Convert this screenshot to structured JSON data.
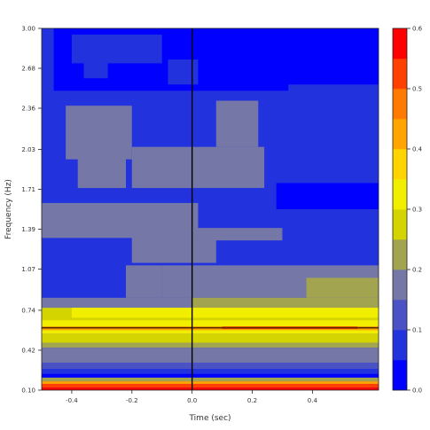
{
  "chart_data": {
    "type": "heatmap",
    "title": "",
    "xlabel": "Time (sec)",
    "ylabel": "Frequency (Hz)",
    "xlim": [
      -0.5,
      0.62
    ],
    "ylim": [
      0.1,
      3.0
    ],
    "x_ticks": [
      -0.4,
      -0.2,
      0.0,
      0.2,
      0.4
    ],
    "x_tick_labels": [
      "-0.4",
      "-0.2",
      "0.0",
      "0.2",
      "0.4"
    ],
    "y_ticks": [
      0.1,
      0.42,
      0.74,
      1.07,
      1.39,
      1.71,
      2.03,
      2.36,
      2.68,
      3.0
    ],
    "y_tick_labels": [
      "0.10",
      "0.42",
      "0.74",
      "1.07",
      "1.39",
      "1.71",
      "2.03",
      "2.36",
      "2.68",
      "3.00"
    ],
    "vertical_line_x": 0.0,
    "horizontal_line_y": 0.6,
    "colorbar": {
      "min": 0.0,
      "max": 0.6,
      "ticks": [
        0.0,
        0.1,
        0.2,
        0.3,
        0.4,
        0.5,
        0.6
      ],
      "tick_labels": [
        "0.0",
        "0.1",
        "0.2",
        "0.3",
        "0.4",
        "0.5",
        "0.6"
      ],
      "levels": [
        {
          "from": 0.0,
          "to": 0.05,
          "color": "#0000ff"
        },
        {
          "from": 0.05,
          "to": 0.1,
          "color": "#2233dd"
        },
        {
          "from": 0.1,
          "to": 0.15,
          "color": "#4a52c4"
        },
        {
          "from": 0.15,
          "to": 0.2,
          "color": "#7577a6"
        },
        {
          "from": 0.2,
          "to": 0.25,
          "color": "#a3a44f"
        },
        {
          "from": 0.25,
          "to": 0.3,
          "color": "#d4d400"
        },
        {
          "from": 0.3,
          "to": 0.35,
          "color": "#f2ee00"
        },
        {
          "from": 0.35,
          "to": 0.4,
          "color": "#ffd400"
        },
        {
          "from": 0.4,
          "to": 0.45,
          "color": "#ffa500"
        },
        {
          "from": 0.45,
          "to": 0.5,
          "color": "#ff7a00"
        },
        {
          "from": 0.5,
          "to": 0.55,
          "color": "#ff4000"
        },
        {
          "from": 0.55,
          "to": 0.6,
          "color": "#ff0000"
        }
      ]
    },
    "regions": [
      {
        "x0": -0.5,
        "x1": 0.62,
        "y0": 0.1,
        "y1": 3.0,
        "level": 2
      },
      {
        "x0": -0.5,
        "x1": 0.62,
        "y0": 2.3,
        "y1": 3.0,
        "level": 1
      },
      {
        "x0": -0.46,
        "x1": 0.32,
        "y0": 2.5,
        "y1": 3.0,
        "level": 0
      },
      {
        "x0": -0.4,
        "x1": -0.1,
        "y0": 2.72,
        "y1": 2.95,
        "level": 1
      },
      {
        "x0": -0.36,
        "x1": -0.28,
        "y0": 2.6,
        "y1": 2.9,
        "level": 1
      },
      {
        "x0": -0.08,
        "x1": 0.02,
        "y0": 2.55,
        "y1": 2.75,
        "level": 1
      },
      {
        "x0": 0.3,
        "x1": 0.62,
        "y0": 2.55,
        "y1": 3.0,
        "level": 0
      },
      {
        "x0": -0.5,
        "x1": 0.62,
        "y0": 1.72,
        "y1": 2.3,
        "level": 1
      },
      {
        "x0": -0.42,
        "x1": -0.2,
        "y0": 1.95,
        "y1": 2.38,
        "level": 3
      },
      {
        "x0": 0.08,
        "x1": 0.22,
        "y0": 2.05,
        "y1": 2.42,
        "level": 3
      },
      {
        "x0": -0.2,
        "x1": 0.24,
        "y0": 1.55,
        "y1": 2.05,
        "level": 3
      },
      {
        "x0": -0.38,
        "x1": -0.22,
        "y0": 1.55,
        "y1": 1.98,
        "level": 3
      },
      {
        "x0": -0.5,
        "x1": 0.62,
        "y0": 1.08,
        "y1": 1.72,
        "level": 1
      },
      {
        "x0": -0.5,
        "x1": 0.3,
        "y0": 1.3,
        "y1": 1.6,
        "level": 3
      },
      {
        "x0": -0.42,
        "x1": 0.08,
        "y0": 1.12,
        "y1": 1.32,
        "level": 3
      },
      {
        "x0": 0.02,
        "x1": 0.62,
        "y0": 1.4,
        "y1": 1.72,
        "level": 1
      },
      {
        "x0": 0.28,
        "x1": 0.62,
        "y0": 1.55,
        "y1": 1.76,
        "level": 0
      },
      {
        "x0": -0.5,
        "x1": -0.2,
        "y0": 0.84,
        "y1": 1.32,
        "level": 1
      },
      {
        "x0": -0.1,
        "x1": 0.62,
        "y0": 0.84,
        "y1": 1.1,
        "level": 3
      },
      {
        "x0": -0.22,
        "x1": -0.1,
        "y0": 0.84,
        "y1": 1.1,
        "level": 3
      },
      {
        "x0": 0.38,
        "x1": 0.62,
        "y0": 0.84,
        "y1": 1.0,
        "level": 4
      },
      {
        "x0": -0.5,
        "x1": 0.62,
        "y0": 0.74,
        "y1": 0.84,
        "level": 3
      },
      {
        "x0": 0.0,
        "x1": 0.62,
        "y0": 0.74,
        "y1": 0.84,
        "level": 4
      },
      {
        "x0": -0.5,
        "x1": 0.62,
        "y0": 0.64,
        "y1": 0.76,
        "level": 5
      },
      {
        "x0": -0.4,
        "x1": 0.62,
        "y0": 0.68,
        "y1": 0.76,
        "level": 6
      },
      {
        "x0": -0.5,
        "x1": 0.62,
        "y0": 0.55,
        "y1": 0.66,
        "level": 6
      },
      {
        "x0": -0.5,
        "x1": 0.62,
        "y0": 0.58,
        "y1": 0.61,
        "level": 8
      },
      {
        "x0": 0.1,
        "x1": 0.55,
        "y0": 0.59,
        "y1": 0.61,
        "level": 10
      },
      {
        "x0": -0.5,
        "x1": 0.62,
        "y0": 0.48,
        "y1": 0.55,
        "level": 5
      },
      {
        "x0": -0.5,
        "x1": 0.62,
        "y0": 0.44,
        "y1": 0.48,
        "level": 4
      },
      {
        "x0": -0.5,
        "x1": 0.62,
        "y0": 0.32,
        "y1": 0.44,
        "level": 3
      },
      {
        "x0": -0.5,
        "x1": 0.62,
        "y0": 0.27,
        "y1": 0.32,
        "level": 2
      },
      {
        "x0": -0.5,
        "x1": 0.62,
        "y0": 0.22,
        "y1": 0.27,
        "level": 1
      },
      {
        "x0": -0.5,
        "x1": 0.62,
        "y0": 0.2,
        "y1": 0.23,
        "level": 0
      },
      {
        "x0": -0.5,
        "x1": 0.62,
        "y0": 0.17,
        "y1": 0.2,
        "level": 4
      },
      {
        "x0": -0.5,
        "x1": 0.62,
        "y0": 0.15,
        "y1": 0.17,
        "level": 8
      },
      {
        "x0": -0.5,
        "x1": 0.62,
        "y0": 0.12,
        "y1": 0.15,
        "level": 10
      },
      {
        "x0": -0.5,
        "x1": 0.62,
        "y0": 0.1,
        "y1": 0.12,
        "level": 11
      }
    ]
  }
}
